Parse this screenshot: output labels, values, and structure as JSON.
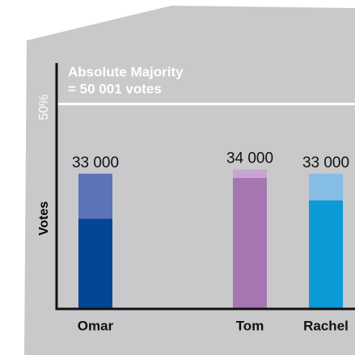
{
  "chart_data": {
    "type": "stacked-bar",
    "y_label": "Votes",
    "categories": [
      "Omar",
      "Tom",
      "Rachel"
    ],
    "series": [
      {
        "values": [
          22000,
          32000,
          26500
        ],
        "colors": [
          "#034694",
          "#a676b2",
          "#0b9bd7"
        ]
      },
      {
        "values": [
          11000,
          2000,
          6500
        ],
        "colors": [
          "#5b74b8",
          "#c6a6d1",
          "#86bde6"
        ]
      }
    ],
    "totals": [
      33000,
      34000,
      33000
    ],
    "total_labels": [
      "33 000",
      "34 000",
      "33 000"
    ],
    "ylim": [
      0,
      60000
    ],
    "majority": {
      "value": 50001,
      "label": "50%"
    },
    "annotation": [
      "Absolute Majority",
      "= 50 001 votes"
    ]
  }
}
